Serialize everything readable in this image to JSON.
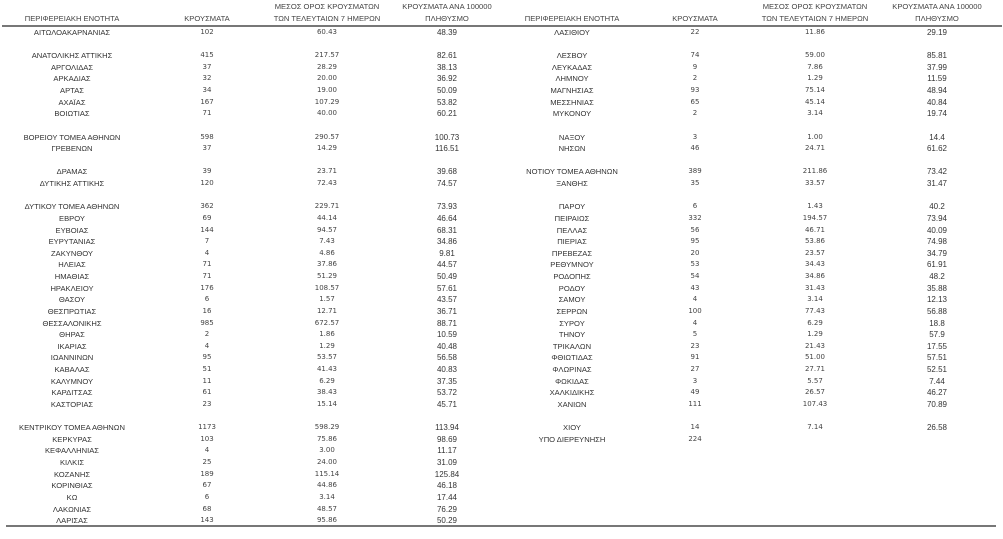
{
  "headers": {
    "region": "ΠΕΡΙΦΕΡΕΙΑΚΗ ΕΝΟΤΗΤΑ",
    "cases": "ΚΡΟΥΣΜΑΤΑ",
    "avg_line1": "ΜΕΣΟΣ ΟΡΟΣ ΚΡΟΥΣΜΑΤΩΝ",
    "avg_line2": "ΤΩΝ ΤΕΛΕΥΤΑΙΩΝ 7 ΗΜΕΡΩΝ",
    "per_line1": "ΚΡΟΥΣΜΑΤΑ ΑΝΑ 100000",
    "per_line2": "ΠΛΗΘΥΣΜΟ"
  },
  "left": [
    [
      "ΑΙΤΩΛΟΑΚΑΡΝΑΝΙΑΣ",
      "102",
      "60.43",
      "48.39"
    ],
    null,
    [
      "ΑΝΑΤΟΛΙΚΗΣ ΑΤΤΙΚΗΣ",
      "415",
      "217.57",
      "82.61"
    ],
    [
      "ΑΡΓΟΛΙΔΑΣ",
      "37",
      "28.29",
      "38.13"
    ],
    [
      "ΑΡΚΑΔΙΑΣ",
      "32",
      "20.00",
      "36.92"
    ],
    [
      "ΑΡΤΑΣ",
      "34",
      "19.00",
      "50.09"
    ],
    [
      "ΑΧΑΪΑΣ",
      "167",
      "107.29",
      "53.82"
    ],
    [
      "ΒΟΙΩΤΙΑΣ",
      "71",
      "40.00",
      "60.21"
    ],
    null,
    [
      "ΒΟΡΕΙΟΥ ΤΟΜΕΑ ΑΘΗΝΩΝ",
      "598",
      "290.57",
      "100.73"
    ],
    [
      "ΓΡΕΒΕΝΩΝ",
      "37",
      "14.29",
      "116.51"
    ],
    null,
    [
      "ΔΡΑΜΑΣ",
      "39",
      "23.71",
      "39.68"
    ],
    [
      "ΔΥΤΙΚΗΣ ΑΤΤΙΚΗΣ",
      "120",
      "72.43",
      "74.57"
    ],
    null,
    [
      "ΔΥΤΙΚΟΥ ΤΟΜΕΑ ΑΘΗΝΩΝ",
      "362",
      "229.71",
      "73.93"
    ],
    [
      "ΕΒΡΟΥ",
      "69",
      "44.14",
      "46.64"
    ],
    [
      "ΕΥΒΟΙΑΣ",
      "144",
      "94.57",
      "68.31"
    ],
    [
      "ΕΥΡΥΤΑΝΙΑΣ",
      "7",
      "7.43",
      "34.86"
    ],
    [
      "ΖΑΚΥΝΘΟΥ",
      "4",
      "4.86",
      "9.81"
    ],
    [
      "ΗΛΕΙΑΣ",
      "71",
      "37.86",
      "44.57"
    ],
    [
      "ΗΜΑΘΙΑΣ",
      "71",
      "51.29",
      "50.49"
    ],
    [
      "ΗΡΑΚΛΕΙΟΥ",
      "176",
      "108.57",
      "57.61"
    ],
    [
      "ΘΑΣΟΥ",
      "6",
      "1.57",
      "43.57"
    ],
    [
      "ΘΕΣΠΡΩΤΙΑΣ",
      "16",
      "12.71",
      "36.71"
    ],
    [
      "ΘΕΣΣΑΛΟΝΙΚΗΣ",
      "985",
      "672.57",
      "88.71"
    ],
    [
      "ΘΗΡΑΣ",
      "2",
      "1.86",
      "10.59"
    ],
    [
      "ΙΚΑΡΙΑΣ",
      "4",
      "1.29",
      "40.48"
    ],
    [
      "ΙΩΑΝΝΙΝΩΝ",
      "95",
      "53.57",
      "56.58"
    ],
    [
      "ΚΑΒΑΛΑΣ",
      "51",
      "41.43",
      "40.83"
    ],
    [
      "ΚΑΛΥΜΝΟΥ",
      "11",
      "6.29",
      "37.35"
    ],
    [
      "ΚΑΡΔΙΤΣΑΣ",
      "61",
      "38.43",
      "53.72"
    ],
    [
      "ΚΑΣΤΟΡΙΑΣ",
      "23",
      "15.14",
      "45.71"
    ],
    null,
    [
      "ΚΕΝΤΡΙΚΟΥ ΤΟΜΕΑ ΑΘΗΝΩΝ",
      "1173",
      "598.29",
      "113.94"
    ],
    [
      "ΚΕΡΚΥΡΑΣ",
      "103",
      "75.86",
      "98.69"
    ],
    [
      "ΚΕΦΑΛΛΗΝΙΑΣ",
      "4",
      "3.00",
      "11.17"
    ],
    [
      "ΚΙΛΚΙΣ",
      "25",
      "24.00",
      "31.09"
    ],
    [
      "ΚΟΖΑΝΗΣ",
      "189",
      "115.14",
      "125.84"
    ],
    [
      "ΚΟΡΙΝΘΙΑΣ",
      "67",
      "44.86",
      "46.18"
    ],
    [
      "ΚΩ",
      "6",
      "3.14",
      "17.44"
    ],
    [
      "ΛΑΚΩΝΙΑΣ",
      "68",
      "48.57",
      "76.29"
    ],
    [
      "ΛΑΡΙΣΑΣ",
      "143",
      "95.86",
      "50.29"
    ]
  ],
  "right": [
    [
      "ΛΑΣΙΘΙΟΥ",
      "22",
      "11.86",
      "29.19"
    ],
    null,
    [
      "ΛΕΣΒΟΥ",
      "74",
      "59.00",
      "85.81"
    ],
    [
      "ΛΕΥΚΑΔΑΣ",
      "9",
      "7.86",
      "37.99"
    ],
    [
      "ΛΗΜΝΟΥ",
      "2",
      "1.29",
      "11.59"
    ],
    [
      "ΜΑΓΝΗΣΙΑΣ",
      "93",
      "75.14",
      "48.94"
    ],
    [
      "ΜΕΣΣΗΝΙΑΣ",
      "65",
      "45.14",
      "40.84"
    ],
    [
      "ΜΥΚΟΝΟΥ",
      "2",
      "3.14",
      "19.74"
    ],
    null,
    [
      "ΝΑΞΟΥ",
      "3",
      "1.00",
      "14.4"
    ],
    [
      "ΝΗΣΩΝ",
      "46",
      "24.71",
      "61.62"
    ],
    null,
    [
      "ΝΟΤΙΟΥ ΤΟΜΕΑ ΑΘΗΝΩΝ",
      "389",
      "211.86",
      "73.42"
    ],
    [
      "ΞΑΝΘΗΣ",
      "35",
      "33.57",
      "31.47"
    ],
    null,
    [
      "ΠΑΡΟΥ",
      "6",
      "1.43",
      "40.2"
    ],
    [
      "ΠΕΙΡΑΙΩΣ",
      "332",
      "194.57",
      "73.94"
    ],
    [
      "ΠΕΛΛΑΣ",
      "56",
      "46.71",
      "40.09"
    ],
    [
      "ΠΙΕΡΙΑΣ",
      "95",
      "53.86",
      "74.98"
    ],
    [
      "ΠΡΕΒΕΖΑΣ",
      "20",
      "23.57",
      "34.79"
    ],
    [
      "ΡΕΘΥΜΝΟΥ",
      "53",
      "34.43",
      "61.91"
    ],
    [
      "ΡΟΔΟΠΗΣ",
      "54",
      "34.86",
      "48.2"
    ],
    [
      "ΡΟΔΟΥ",
      "43",
      "31.43",
      "35.88"
    ],
    [
      "ΣΑΜΟΥ",
      "4",
      "3.14",
      "12.13"
    ],
    [
      "ΣΕΡΡΩΝ",
      "100",
      "77.43",
      "56.88"
    ],
    [
      "ΣΥΡΟΥ",
      "4",
      "6.29",
      "18.8"
    ],
    [
      "ΤΗΝΟΥ",
      "5",
      "1.29",
      "57.9"
    ],
    [
      "ΤΡΙΚΑΛΩΝ",
      "23",
      "21.43",
      "17.55"
    ],
    [
      "ΦΘΙΩΤΙΔΑΣ",
      "91",
      "51.00",
      "57.51"
    ],
    [
      "ΦΛΩΡΙΝΑΣ",
      "27",
      "27.71",
      "52.51"
    ],
    [
      "ΦΩΚΙΔΑΣ",
      "3",
      "5.57",
      "7.44"
    ],
    [
      "ΧΑΛΚΙΔΙΚΗΣ",
      "49",
      "26.57",
      "46.27"
    ],
    [
      "ΧΑΝΙΩΝ",
      "111",
      "107.43",
      "70.89"
    ],
    null,
    [
      "ΧΙΟΥ",
      "14",
      "7.14",
      "26.58"
    ],
    [
      "ΥΠΟ ΔΙΕΡΕΥΝΗΣΗ",
      "224",
      null,
      null
    ]
  ]
}
